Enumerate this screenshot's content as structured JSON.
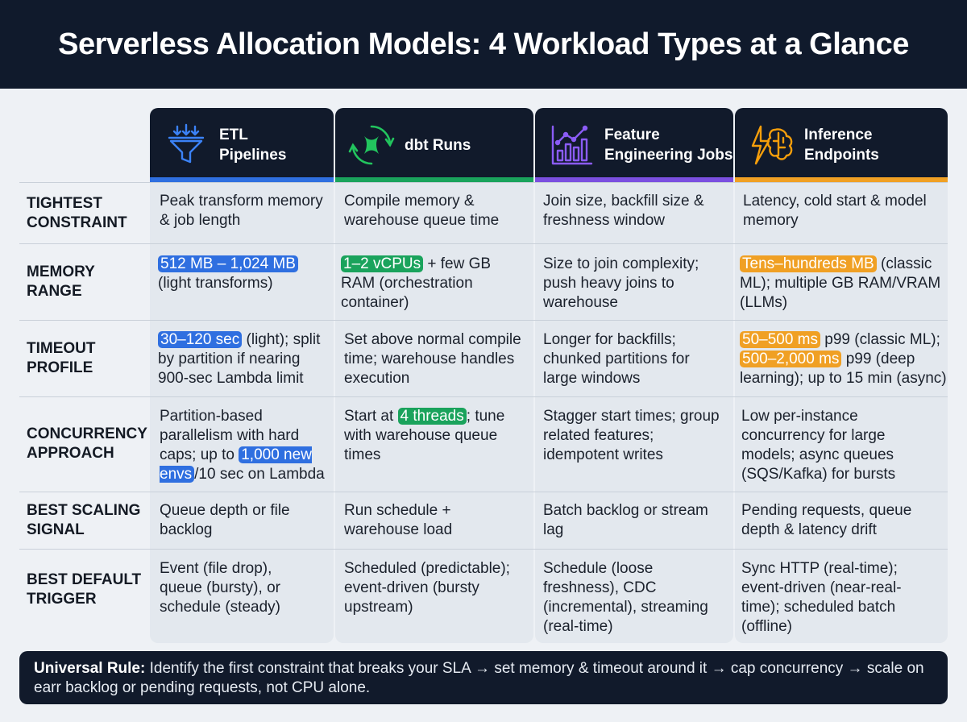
{
  "title": "Serverless Allocation Models: 4 Workload Types at a Glance",
  "columns": [
    {
      "line1": "ETL",
      "line2": "Pipelines",
      "icon": "funnel-icon",
      "accent": "#2f6fe0"
    },
    {
      "line1": "dbt Runs",
      "line2": "",
      "icon": "dbt-icon",
      "accent": "#1aa35c"
    },
    {
      "line1": "Feature",
      "line2": "Engineering Jobs",
      "icon": "chart-icon",
      "accent": "#7b4fe0"
    },
    {
      "line1": "Inference",
      "line2": "Endpoints",
      "icon": "brain-bolt-icon",
      "accent": "#f0a024"
    }
  ],
  "rows": [
    {
      "label": "TIGHTEST CONSTRAINT",
      "cells": [
        {
          "text": "Peak transform memory & job length"
        },
        {
          "text": "Compile memory & warehouse queue time"
        },
        {
          "text": "Join size, backfill size & freshness window"
        },
        {
          "text": "Latency, cold start & model memory"
        }
      ]
    },
    {
      "label": "MEMORY RANGE",
      "cells": [
        {
          "hl": "512 MB – 1,024 MB",
          "rest": "(light transforms)"
        },
        {
          "hl": "1–2 vCPUs",
          "rest": "+ few GB RAM (orchestration container)"
        },
        {
          "text": "Size to join complexity; push heavy joins to warehouse"
        },
        {
          "hl": "Tens–hundreds MB",
          "rest": "(classic ML); multiple GB RAM/VRAM (LLMs)"
        }
      ]
    },
    {
      "label": "TIMEOUT PROFILE",
      "cells": [
        {
          "hl": "30–120 sec",
          "rest": "(light); split by partition if nearing 900-sec Lambda limit"
        },
        {
          "text": "Set above normal compile time; warehouse handles execution"
        },
        {
          "text": "Longer for backfills; chunked partitions for large windows"
        },
        {
          "hl": "50–500 ms",
          "mid": "p99 (classic ML);",
          "hl2": "500–2,000 ms",
          "rest": "p99 (deep learning); up to 15 min (async)"
        }
      ]
    },
    {
      "label": "CONCURRENCY APPROACH",
      "cells": [
        {
          "pre": "Partition-based parallelism with hard caps; up to",
          "hl": "1,000 new envs",
          "rest": "/10 sec on Lambda"
        },
        {
          "pre": "Start at",
          "hl": "4 threads",
          "rest": "; tune with warehouse queue times"
        },
        {
          "text": "Stagger start times; group related features; idempotent writes"
        },
        {
          "text": "Low per-instance concurrency for large models; async queues (SQS/Kafka) for bursts"
        }
      ]
    },
    {
      "label": "BEST SCALING SIGNAL",
      "cells": [
        {
          "text": "Queue depth or file backlog"
        },
        {
          "text": "Run schedule + warehouse load"
        },
        {
          "text": "Batch backlog or stream lag"
        },
        {
          "text": "Pending requests, queue depth & latency drift"
        }
      ]
    },
    {
      "label": "BEST DEFAULT TRIGGER",
      "cells": [
        {
          "text": "Event (file drop), queue (bursty), or schedule (steady)"
        },
        {
          "text": "Scheduled (predictable); event-driven (bursty upstream)"
        },
        {
          "text": "Schedule (loose freshness), CDC (incremental), streaming (real-time)"
        },
        {
          "text": "Sync HTTP (real-time); event-driven (near-real-time); scheduled batch (offline)"
        }
      ]
    }
  ],
  "footer": {
    "label": "Universal Rule:",
    "text": "Identify the first constraint that breaks your SLA → set memory & timeout around it → cap concurrency → scale on earr backlog or pending requests, not CPU alone."
  }
}
